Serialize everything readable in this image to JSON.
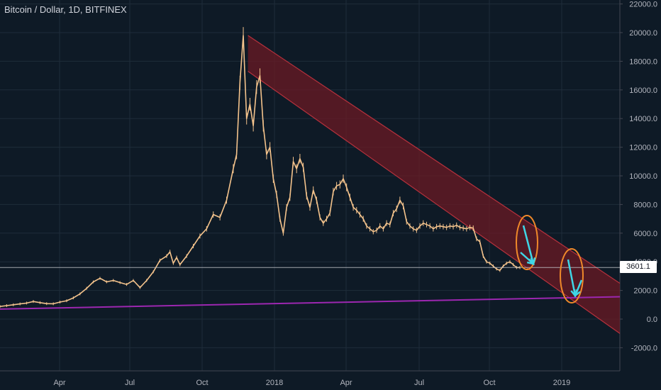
{
  "title": "Bitcoin / Dollar, 1D, BITFINEX",
  "current_price_label": "3601.1",
  "colors": {
    "background": "#0e1a26",
    "grid": "#1f2c3a",
    "price_line": "#f4c38c",
    "support_line": "#9c27b0",
    "channel_fill": "#6b1a24",
    "channel_edge": "#b5313c",
    "annotation_ellipse": "#f0892a",
    "annotation_arrow": "#3fd6e6",
    "axis_text": "#b2b5be",
    "crosshair": "#c7c9ce"
  },
  "chart_data": {
    "type": "line",
    "title": "Bitcoin / Dollar, 1D, BITFINEX",
    "xlabel": "",
    "ylabel": "",
    "ylim": [
      -3000,
      22000
    ],
    "y_ticks": [
      "22000.0",
      "20000.0",
      "18000.0",
      "16000.0",
      "14000.0",
      "12000.0",
      "10000.0",
      "8000.0",
      "6000.0",
      "4000.0",
      "2000.0",
      "0.0",
      "-2000.0"
    ],
    "x_ticks": [
      "Apr",
      "Jul",
      "Oct",
      "2018",
      "Apr",
      "Jul",
      "Oct",
      "2019"
    ],
    "grid": true,
    "series": [
      {
        "values": [
          [
            0,
            880
          ],
          [
            10,
            940
          ],
          [
            20,
            1000
          ],
          [
            30,
            1060
          ],
          [
            40,
            1120
          ],
          [
            50,
            1230
          ],
          [
            60,
            1150
          ],
          [
            70,
            1080
          ],
          [
            80,
            1070
          ],
          [
            90,
            1190
          ],
          [
            100,
            1280
          ],
          [
            110,
            1480
          ],
          [
            120,
            1760
          ],
          [
            130,
            2150
          ],
          [
            140,
            2600
          ],
          [
            150,
            2850
          ],
          [
            160,
            2600
          ],
          [
            170,
            2700
          ],
          [
            180,
            2550
          ],
          [
            190,
            2420
          ],
          [
            200,
            2700
          ],
          [
            210,
            2200
          ],
          [
            220,
            2700
          ],
          [
            230,
            3300
          ],
          [
            240,
            4100
          ],
          [
            250,
            4400
          ],
          [
            255,
            4700
          ],
          [
            260,
            3900
          ],
          [
            265,
            4300
          ],
          [
            270,
            3800
          ],
          [
            280,
            4400
          ],
          [
            290,
            5100
          ],
          [
            300,
            5800
          ],
          [
            310,
            6300
          ],
          [
            320,
            7300
          ],
          [
            330,
            7100
          ],
          [
            340,
            8300
          ],
          [
            350,
            10500
          ],
          [
            355,
            11500
          ],
          [
            360,
            16500
          ],
          [
            365,
            19800
          ],
          [
            370,
            14000
          ],
          [
            375,
            15000
          ],
          [
            380,
            13500
          ],
          [
            385,
            16200
          ],
          [
            390,
            17000
          ],
          [
            395,
            13500
          ],
          [
            400,
            11500
          ],
          [
            405,
            12000
          ],
          [
            410,
            9800
          ],
          [
            415,
            8700
          ],
          [
            420,
            7000
          ],
          [
            425,
            6000
          ],
          [
            430,
            7800
          ],
          [
            435,
            8500
          ],
          [
            440,
            11000
          ],
          [
            445,
            10500
          ],
          [
            450,
            11200
          ],
          [
            455,
            10600
          ],
          [
            460,
            8600
          ],
          [
            465,
            7800
          ],
          [
            470,
            9000
          ],
          [
            475,
            8300
          ],
          [
            480,
            7100
          ],
          [
            485,
            6700
          ],
          [
            490,
            7000
          ],
          [
            495,
            7400
          ],
          [
            500,
            8900
          ],
          [
            505,
            9300
          ],
          [
            510,
            9400
          ],
          [
            515,
            9800
          ],
          [
            520,
            9200
          ],
          [
            525,
            8500
          ],
          [
            530,
            7800
          ],
          [
            535,
            7600
          ],
          [
            540,
            7300
          ],
          [
            545,
            7000
          ],
          [
            550,
            6500
          ],
          [
            555,
            6300
          ],
          [
            560,
            6100
          ],
          [
            565,
            6200
          ],
          [
            570,
            6500
          ],
          [
            575,
            6300
          ],
          [
            580,
            6700
          ],
          [
            585,
            6600
          ],
          [
            590,
            7400
          ],
          [
            595,
            7700
          ],
          [
            600,
            8300
          ],
          [
            605,
            7900
          ],
          [
            610,
            6800
          ],
          [
            615,
            6500
          ],
          [
            620,
            6300
          ],
          [
            625,
            6200
          ],
          [
            630,
            6500
          ],
          [
            635,
            6700
          ],
          [
            640,
            6600
          ],
          [
            645,
            6500
          ],
          [
            650,
            6300
          ],
          [
            655,
            6450
          ],
          [
            660,
            6500
          ],
          [
            665,
            6450
          ],
          [
            670,
            6400
          ],
          [
            675,
            6500
          ],
          [
            680,
            6450
          ],
          [
            685,
            6550
          ],
          [
            690,
            6400
          ],
          [
            695,
            6350
          ],
          [
            700,
            6300
          ],
          [
            705,
            6400
          ],
          [
            710,
            6350
          ],
          [
            715,
            5600
          ],
          [
            720,
            5400
          ],
          [
            725,
            4400
          ],
          [
            730,
            4000
          ],
          [
            735,
            3900
          ],
          [
            740,
            3700
          ],
          [
            745,
            3500
          ],
          [
            750,
            3400
          ],
          [
            755,
            3700
          ],
          [
            760,
            3900
          ],
          [
            765,
            4000
          ],
          [
            770,
            3800
          ],
          [
            775,
            3600
          ],
          [
            780,
            3601
          ]
        ]
      },
      {
        "name": "",
        "values": [
          [
            0,
            700
          ],
          [
            930,
            1560
          ]
        ]
      }
    ],
    "channel": {
      "upper": [
        [
          372,
          19800
        ],
        [
          930,
          2500
        ]
      ],
      "lower": [
        [
          372,
          17300
        ],
        [
          930,
          -1000
        ]
      ]
    },
    "current_price": 3601.1
  }
}
